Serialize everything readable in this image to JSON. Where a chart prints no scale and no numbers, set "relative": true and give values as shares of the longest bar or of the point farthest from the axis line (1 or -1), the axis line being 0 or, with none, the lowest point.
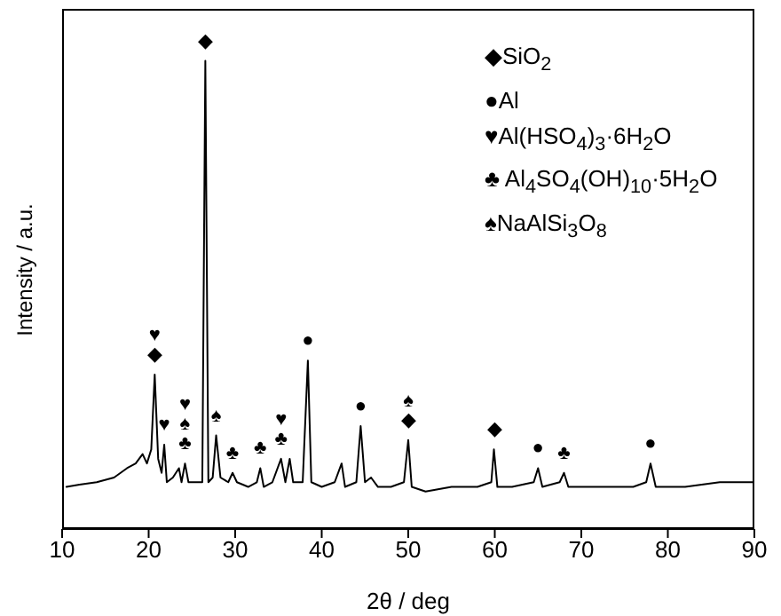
{
  "chart_data": {
    "type": "line",
    "relative": true,
    "xlabel": "2θ / deg",
    "ylabel": "Intensity / a.u.",
    "xlim": [
      10,
      90
    ],
    "xticks": [
      10,
      20,
      30,
      40,
      50,
      60,
      70,
      80,
      90
    ],
    "series": [
      {
        "color": "#000000",
        "x": [
          10.5,
          12,
          14,
          16,
          17.5,
          18.5,
          19.3,
          19.8,
          20.3,
          20.7,
          21.1,
          21.5,
          21.8,
          22.1,
          22.8,
          23.5,
          23.8,
          24.2,
          24.6,
          25.5,
          26.2,
          26.55,
          26.9,
          27.4,
          27.8,
          28.3,
          29.2,
          29.7,
          30.2,
          31.5,
          32.5,
          32.9,
          33.3,
          34.3,
          35.3,
          35.8,
          36.3,
          36.7,
          37.8,
          38.4,
          38.8,
          40,
          41.5,
          42.3,
          42.7,
          44,
          44.5,
          45,
          45.7,
          46.5,
          48,
          49.5,
          50,
          50.4,
          52,
          55,
          58,
          59.6,
          59.9,
          60.3,
          62,
          64.5,
          65,
          65.5,
          67.5,
          68,
          68.5,
          72,
          76,
          77.5,
          78,
          78.6,
          82,
          86,
          89.8
        ],
        "values": [
          0.09,
          0.095,
          0.1,
          0.11,
          0.13,
          0.14,
          0.16,
          0.14,
          0.17,
          0.33,
          0.15,
          0.12,
          0.18,
          0.1,
          0.11,
          0.13,
          0.1,
          0.14,
          0.1,
          0.1,
          0.1,
          1.0,
          0.1,
          0.11,
          0.2,
          0.11,
          0.1,
          0.12,
          0.1,
          0.09,
          0.1,
          0.13,
          0.09,
          0.1,
          0.15,
          0.1,
          0.15,
          0.1,
          0.1,
          0.36,
          0.1,
          0.09,
          0.1,
          0.14,
          0.09,
          0.1,
          0.22,
          0.1,
          0.11,
          0.09,
          0.09,
          0.1,
          0.19,
          0.09,
          0.08,
          0.09,
          0.09,
          0.1,
          0.17,
          0.09,
          0.09,
          0.1,
          0.13,
          0.09,
          0.1,
          0.12,
          0.09,
          0.09,
          0.09,
          0.1,
          0.14,
          0.09,
          0.09,
          0.1,
          0.1
        ]
      }
    ],
    "annotations": [
      "◆SiO$_{2}$",
      "●Al",
      "♥Al(HSO$_{4}$)$_{3}$·6H$_{2}$O",
      "♣ Al$_{4}$SO$_{4}$(OH)$_{10}$·5H$_{2}$O",
      "♠NaAlSi$_{3}$O$_{8}$",
      {
        "text": "◆",
        "x": 26.55,
        "y": 1.0
      },
      {
        "text": "◆",
        "x": 20.7,
        "y": 0.33
      },
      {
        "text": "♥",
        "x": 20.7,
        "y": 0.33
      },
      {
        "text": "♥",
        "x": 21.8,
        "y": 0.18
      },
      {
        "text": "♣",
        "x": 24.2,
        "y": 0.14
      },
      {
        "text": "♠",
        "x": 24.2,
        "y": 0.14
      },
      {
        "text": "♥",
        "x": 24.2,
        "y": 0.14
      },
      {
        "text": "♠",
        "x": 27.8,
        "y": 0.2
      },
      {
        "text": "♣",
        "x": 29.7,
        "y": 0.12
      },
      {
        "text": "♣",
        "x": 32.9,
        "y": 0.13
      },
      {
        "text": "♣",
        "x": 35.3,
        "y": 0.15
      },
      {
        "text": "♥",
        "x": 35.3,
        "y": 0.15
      },
      {
        "text": "●",
        "x": 38.4,
        "y": 0.36
      },
      {
        "text": "●",
        "x": 44.5,
        "y": 0.22
      },
      {
        "text": "◆",
        "x": 50,
        "y": 0.19
      },
      {
        "text": "♠",
        "x": 50,
        "y": 0.19
      },
      {
        "text": "◆",
        "x": 59.9,
        "y": 0.17
      },
      {
        "text": "●",
        "x": 65,
        "y": 0.13
      },
      {
        "text": "♣",
        "x": 68,
        "y": 0.12
      },
      {
        "text": "●",
        "x": 78,
        "y": 0.14
      }
    ]
  }
}
